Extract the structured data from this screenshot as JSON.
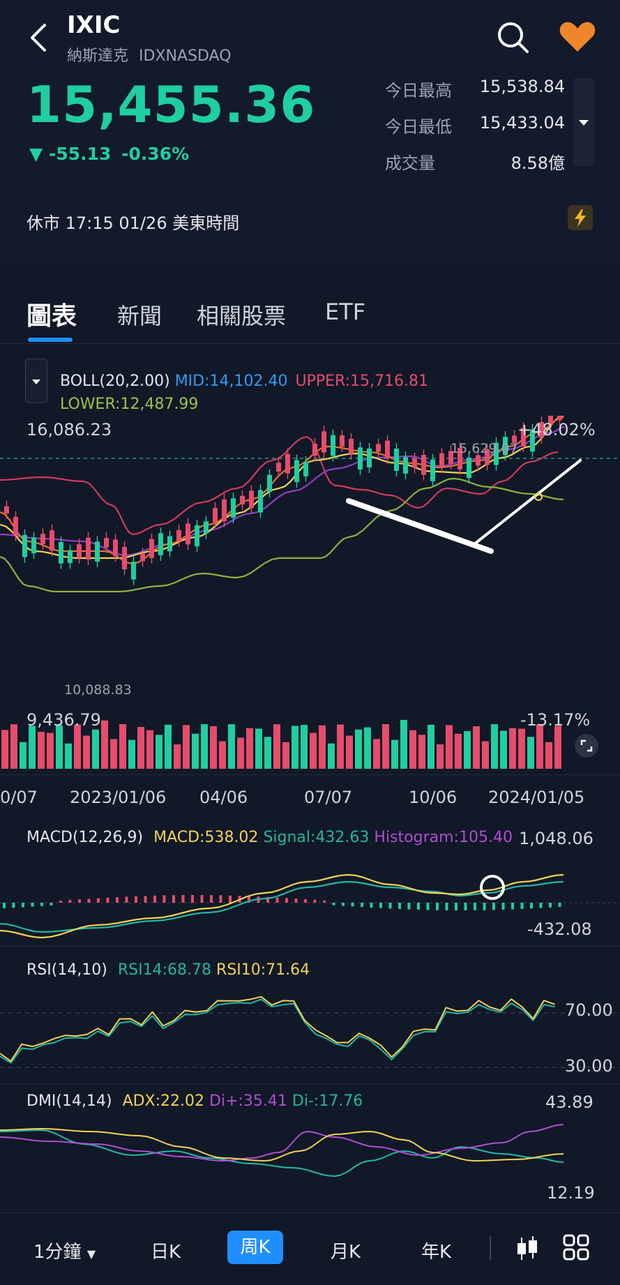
{
  "header": {
    "symbol": "IXIC",
    "name": "納斯達克",
    "exchange": "IDXNASDAQ",
    "price": "15,455.36",
    "change": "-55.13",
    "change_pct": "-0.36%",
    "stats": [
      {
        "label": "今日最高",
        "value": "15,538.84"
      },
      {
        "label": "今日最低",
        "value": "15,433.04"
      },
      {
        "label": "成交量",
        "value": "8.58億"
      }
    ],
    "status": "休市 17:15 01/26 美東時間",
    "colors": {
      "up": "#e64c6b",
      "down": "#1fcf9f",
      "accent": "#1f8fff"
    }
  },
  "icons": {
    "back": "chevron-left-icon",
    "search": "search-icon",
    "favorite": "heart-icon",
    "flash": "lightning-icon"
  },
  "tabs": [
    "圖表",
    "新聞",
    "相關股票",
    "ETF"
  ],
  "indicators": {
    "boll": {
      "title": "BOLL(20,2.00)",
      "mid": "MID:14,102.40",
      "upper": "UPPER:15,716.81",
      "lower": "LOWER:12,487.99"
    },
    "macd": {
      "title": "MACD(12,26,9)",
      "macd": "MACD:538.02",
      "signal": "Signal:432.63",
      "histogram": "Histogram:105.40",
      "max": "1,048.06",
      "min": "-432.08"
    },
    "rsi": {
      "title": "RSI(14,10)",
      "rsi14": "RSI14:68.78",
      "rsi10": "RSI10:71.64",
      "level_high": "70.00",
      "level_low": "30.00"
    },
    "dmi": {
      "title": "DMI(14,14)",
      "adx": "ADX:22.02",
      "di_plus": "Di+:35.41",
      "di_minus": "Di-:17.76",
      "max": "43.89",
      "min": "12.19"
    }
  },
  "chart": {
    "high_label": "16,086.23",
    "low_label": "9,436.79",
    "pct_high": "+48.02%",
    "pct_low": "-13.17%",
    "max_point": "15,629.07",
    "min_point": "10,088.83",
    "dates": [
      "0/07",
      "2023/01/06",
      "04/06",
      "07/07",
      "10/06",
      "2024/01/05"
    ]
  },
  "bottom_bar": {
    "items": [
      "1分鐘",
      "日K",
      "周K",
      "月K",
      "年K"
    ],
    "active": "周K"
  }
}
